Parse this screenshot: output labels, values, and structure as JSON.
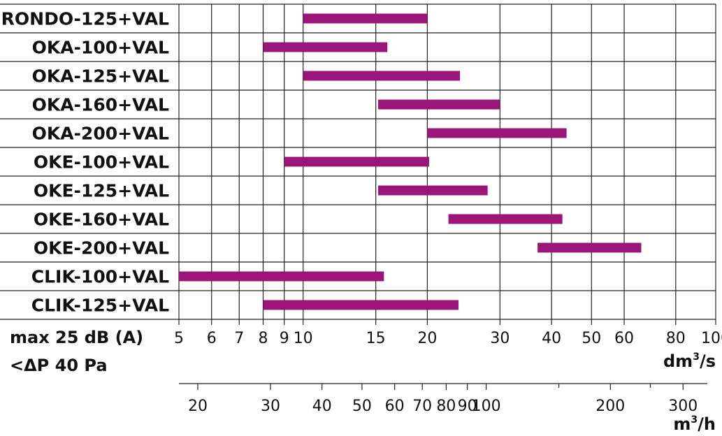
{
  "chart_data": {
    "type": "bar",
    "orientation": "horizontal-range",
    "x_scale": "log",
    "categories": [
      "RONDO-125+VAL",
      "OKA-100+VAL",
      "OKA-125+VAL",
      "OKA-160+VAL",
      "OKA-200+VAL",
      "OKE-100+VAL",
      "OKE-125+VAL",
      "OKE-160+VAL",
      "OKE-200+VAL",
      "CLIK-100+VAL",
      "CLIK-125+VAL"
    ],
    "series": [
      {
        "color": "#9b1478",
        "ranges": [
          [
            10,
            20
          ],
          [
            8,
            16
          ],
          [
            10,
            24
          ],
          [
            15.2,
            30
          ],
          [
            20,
            43.5
          ],
          [
            9,
            20.2
          ],
          [
            15.2,
            28
          ],
          [
            22.5,
            42.5
          ],
          [
            37,
            66
          ],
          [
            5,
            15.7
          ],
          [
            8,
            23.8
          ]
        ]
      }
    ],
    "xlim": [
      5,
      100
    ],
    "x_ticks": [
      5,
      6,
      7,
      8,
      9,
      10,
      15,
      20,
      30,
      40,
      50,
      60,
      80,
      100
    ],
    "x_tick_labels": [
      "5",
      "6",
      "7",
      "8",
      "9",
      "10",
      "15",
      "20",
      "30",
      "40",
      "50",
      "60",
      "80",
      "100"
    ],
    "x_unit": {
      "base": "dm",
      "sup": "3",
      "tail": "/s"
    },
    "x2_ticks_m3h": [
      20,
      30,
      40,
      50,
      60,
      70,
      80,
      90,
      100,
      200,
      300
    ],
    "x2_tick_labels": [
      "20",
      "30",
      "40",
      "50",
      "60",
      "70",
      "80",
      "90",
      "100",
      "200",
      "300"
    ],
    "x2_unit": {
      "base": "m",
      "sup": "3",
      "tail": "/h"
    },
    "x2_conversion_factor": 3.6,
    "conditions": [
      "max 25 dB (A)",
      "<ΔP 40 Pa"
    ],
    "grid": true
  }
}
